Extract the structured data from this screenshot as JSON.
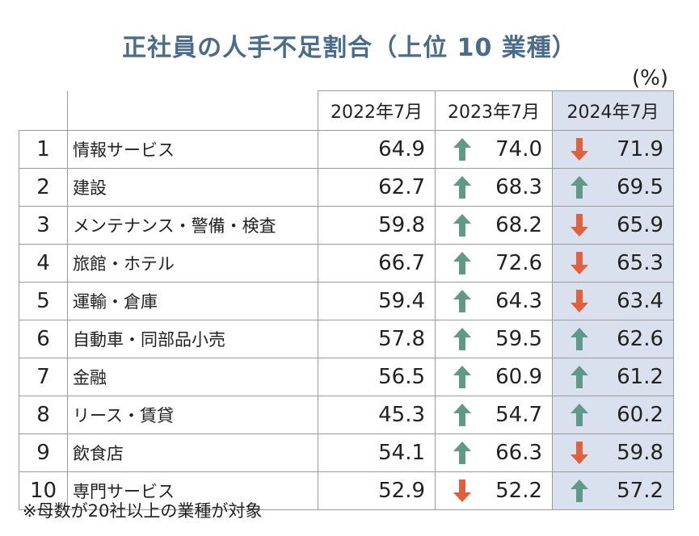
{
  "title": "正社員の人手不足割合（上位 10 業種）",
  "unit": "(%)",
  "headers": [
    "2022年7月",
    "2023年7月",
    "2024年7月"
  ],
  "colors": {
    "up": "#5e9a86",
    "down": "#e2603c",
    "highlight": "#d9e1ee",
    "title": "#4a6c8c"
  },
  "rows": [
    {
      "rank": "1",
      "name": "情報サービス",
      "v2022": "64.9",
      "v2023": "74.0",
      "a2023": "up",
      "v2024": "71.9",
      "a2024": "down"
    },
    {
      "rank": "2",
      "name": "建設",
      "v2022": "62.7",
      "v2023": "68.3",
      "a2023": "up",
      "v2024": "69.5",
      "a2024": "up"
    },
    {
      "rank": "3",
      "name": "メンテナンス・警備・検査",
      "v2022": "59.8",
      "v2023": "68.2",
      "a2023": "up",
      "v2024": "65.9",
      "a2024": "down"
    },
    {
      "rank": "4",
      "name": "旅館・ホテル",
      "v2022": "66.7",
      "v2023": "72.6",
      "a2023": "up",
      "v2024": "65.3",
      "a2024": "down"
    },
    {
      "rank": "5",
      "name": "運輸・倉庫",
      "v2022": "59.4",
      "v2023": "64.3",
      "a2023": "up",
      "v2024": "63.4",
      "a2024": "down"
    },
    {
      "rank": "6",
      "name": "自動車・同部品小売",
      "v2022": "57.8",
      "v2023": "59.5",
      "a2023": "up",
      "v2024": "62.6",
      "a2024": "up"
    },
    {
      "rank": "7",
      "name": "金融",
      "v2022": "56.5",
      "v2023": "60.9",
      "a2023": "up",
      "v2024": "61.2",
      "a2024": "up"
    },
    {
      "rank": "8",
      "name": "リース・賃貸",
      "v2022": "45.3",
      "v2023": "54.7",
      "a2023": "up",
      "v2024": "60.2",
      "a2024": "up"
    },
    {
      "rank": "9",
      "name": "飲食店",
      "v2022": "54.1",
      "v2023": "66.3",
      "a2023": "up",
      "v2024": "59.8",
      "a2024": "down"
    },
    {
      "rank": "10",
      "name": "専門サービス",
      "v2022": "52.9",
      "v2023": "52.2",
      "a2023": "down",
      "v2024": "57.2",
      "a2024": "up"
    }
  ],
  "note": "※母数が20社以上の業種が対象",
  "chart_data": {
    "type": "table",
    "title": "正社員の人手不足割合（上位 10 業種）",
    "unit": "%",
    "columns": [
      "2022年7月",
      "2023年7月",
      "2024年7月"
    ],
    "categories": [
      "情報サービス",
      "建設",
      "メンテナンス・警備・検査",
      "旅館・ホテル",
      "運輸・倉庫",
      "自動車・同部品小売",
      "金融",
      "リース・賃貸",
      "飲食店",
      "専門サービス"
    ],
    "series": [
      {
        "name": "2022年7月",
        "values": [
          64.9,
          62.7,
          59.8,
          66.7,
          59.4,
          57.8,
          56.5,
          45.3,
          54.1,
          52.9
        ]
      },
      {
        "name": "2023年7月",
        "values": [
          74.0,
          68.3,
          68.2,
          72.6,
          64.3,
          59.5,
          60.9,
          54.7,
          66.3,
          52.2
        ]
      },
      {
        "name": "2024年7月",
        "values": [
          71.9,
          69.5,
          65.9,
          65.3,
          63.4,
          62.6,
          61.2,
          60.2,
          59.8,
          57.2
        ]
      }
    ]
  }
}
